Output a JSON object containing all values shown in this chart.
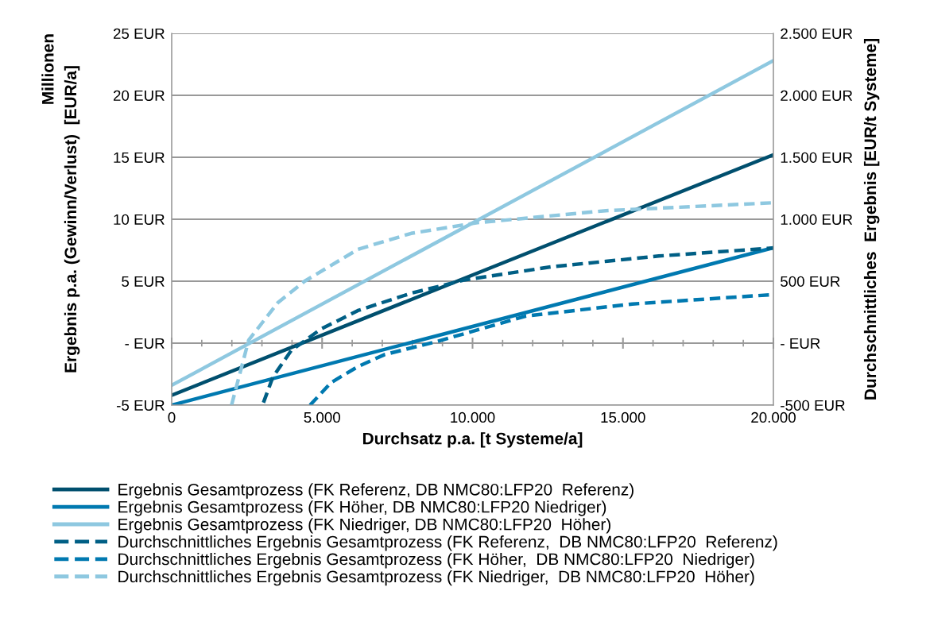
{
  "chart_data": {
    "type": "line",
    "xlabel": "Durchsatz p.a. [t Systeme/a]",
    "ylabel": "Ergebnis p.a. (Gewinn/Verlust)  [EUR/a]",
    "y2label": "Durchschnittliches  Ergebnis [EUR/t Systeme]",
    "annotations": [
      "Millionen"
    ],
    "xlim": [
      0,
      20000
    ],
    "xticks": [
      {
        "value": 0,
        "label": "0"
      },
      {
        "value": 5000,
        "label": "5.000"
      },
      {
        "value": 10000,
        "label": "10.000"
      },
      {
        "value": 15000,
        "label": "15.000"
      },
      {
        "value": 20000,
        "label": "20.000"
      }
    ],
    "ylim": [
      -5,
      25
    ],
    "yticks": [
      {
        "value": -5,
        "label": "-5 EUR"
      },
      {
        "value": 0,
        "label": "- EUR"
      },
      {
        "value": 5,
        "label": "5 EUR"
      },
      {
        "value": 10,
        "label": "10 EUR"
      },
      {
        "value": 15,
        "label": "15 EUR"
      },
      {
        "value": 20,
        "label": "20 EUR"
      },
      {
        "value": 25,
        "label": "25 EUR"
      }
    ],
    "y2lim": [
      -500,
      2500
    ],
    "y2ticks": [
      {
        "value": -500,
        "label": "-500 EUR"
      },
      {
        "value": 0,
        "label": "- EUR"
      },
      {
        "value": 500,
        "label": "500 EUR"
      },
      {
        "value": 1000,
        "label": "1.000 EUR"
      },
      {
        "value": 1500,
        "label": "1.500 EUR"
      },
      {
        "value": 2000,
        "label": "2.000 EUR"
      },
      {
        "value": 2500,
        "label": "2.500 EUR"
      }
    ],
    "grid": "y",
    "legend": "bottom",
    "marker": "none",
    "series": [
      {
        "name": "Ergebnis Gesamtprozess (FK Referenz, DB NMC80:LFP20  Referenz)",
        "color": "#004f6e",
        "line_style": "solid",
        "x": [
          0,
          20000
        ],
        "values": [
          -4.2,
          15.2
        ]
      },
      {
        "name": "Ergebnis Gesamtprozess (FK Höher, DB NMC80:LFP20 Niedriger)",
        "color": "#0079b0",
        "line_style": "solid",
        "x": [
          0,
          20000
        ],
        "values": [
          -5.0,
          7.7
        ]
      },
      {
        "name": "Ergebnis Gesamtprozess (FK Niedriger, DB NMC80:LFP20  Höher)",
        "color": "#8ec8e0",
        "line_style": "solid",
        "x": [
          0,
          20000
        ],
        "values": [
          -3.4,
          22.8
        ]
      },
      {
        "name": "Durchschnittliches Ergebnis Gesamtprozess (FK Referenz,  DB NMC80:LFP20  Referenz)",
        "color": "#005f85",
        "line_style": "dashed",
        "axis": "y2",
        "x": [
          3050,
          3360,
          3970,
          4950,
          6190,
          7960,
          9730,
          12650,
          16190,
          20000
        ],
        "values": [
          -480,
          -275,
          -60,
          112,
          263,
          403,
          510,
          617,
          703,
          768
        ]
      },
      {
        "name": "Durchschnittliches Ergebnis Gesamtprozess (FK Höher,  DB NMC80:LFP20  Niedriger)",
        "color": "#0079b0",
        "line_style": "dashed",
        "axis": "y2",
        "x": [
          4600,
          5300,
          6190,
          7080,
          8840,
          11780,
          15310,
          20000
        ],
        "values": [
          -500,
          -318,
          -189,
          -92,
          15,
          219,
          316,
          392
        ]
      },
      {
        "name": "Durchschnittliches Ergebnis Gesamtprozess (FK Niedriger,  DB NMC80:LFP20  Höher)",
        "color": "#8ec8e0",
        "line_style": "dashed",
        "axis": "y2",
        "x": [
          1990,
          2560,
          3530,
          4420,
          6190,
          7960,
          10160,
          14430,
          20000
        ],
        "values": [
          -500,
          25,
          327,
          500,
          757,
          886,
          972,
          1069,
          1133
        ]
      }
    ]
  }
}
